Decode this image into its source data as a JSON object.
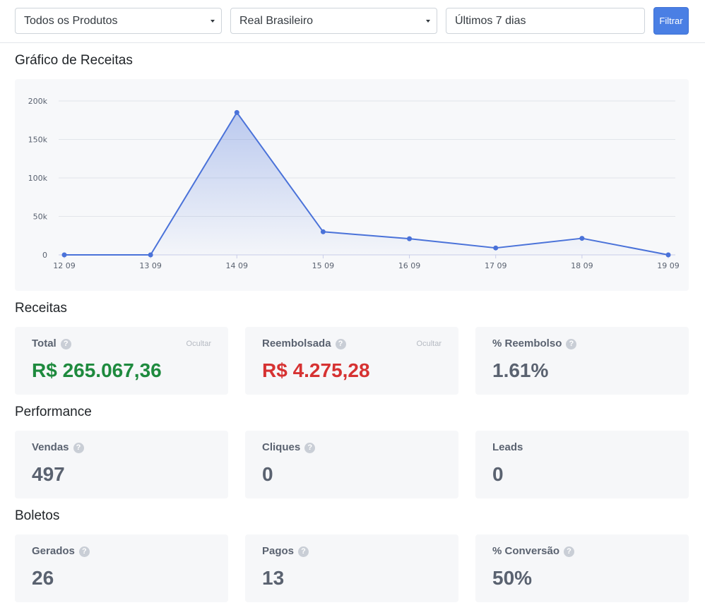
{
  "filters": {
    "product": "Todos os Produtos",
    "currency": "Real Brasileiro",
    "period": "Últimos 7 dias",
    "filter_button": "Filtrar"
  },
  "chart_section": {
    "title": "Gráfico de Receitas"
  },
  "chart_data": {
    "type": "area",
    "x": [
      "12 09",
      "13 09",
      "14 09",
      "15 09",
      "16 09",
      "17 09",
      "18 09",
      "19 09"
    ],
    "series": [
      {
        "values": [
          0,
          0,
          185000,
          30000,
          21000,
          9000,
          21500,
          0
        ]
      }
    ],
    "y_ticks": [
      0,
      50000,
      100000,
      150000,
      200000
    ],
    "y_tick_labels": [
      "0",
      "50k",
      "100k",
      "150k",
      "200k"
    ],
    "ylim": [
      0,
      200000
    ],
    "grid": true,
    "colors": {
      "line": "#4a72d9",
      "fill_top": "#4a72d9",
      "grid": "#e2e5ea"
    }
  },
  "receitas": {
    "title": "Receitas",
    "cards": [
      {
        "label": "Total",
        "hide_label": "Ocultar",
        "value": "R$ 265.067,36",
        "color": "#1e8a3e"
      },
      {
        "label": "Reembolsada",
        "hide_label": "Ocultar",
        "value": "R$ 4.275,28",
        "color": "#d63232"
      },
      {
        "label": "% Reembolso",
        "value": "1.61%"
      }
    ]
  },
  "performance": {
    "title": "Performance",
    "cards": [
      {
        "label": "Vendas",
        "value": "497"
      },
      {
        "label": "Cliques",
        "value": "0"
      },
      {
        "label": "Leads",
        "value": "0"
      }
    ]
  },
  "boletos": {
    "title": "Boletos",
    "cards": [
      {
        "label": "Gerados",
        "value": "26"
      },
      {
        "label": "Pagos",
        "value": "13"
      },
      {
        "label": "% Conversão",
        "value": "50%"
      }
    ]
  }
}
